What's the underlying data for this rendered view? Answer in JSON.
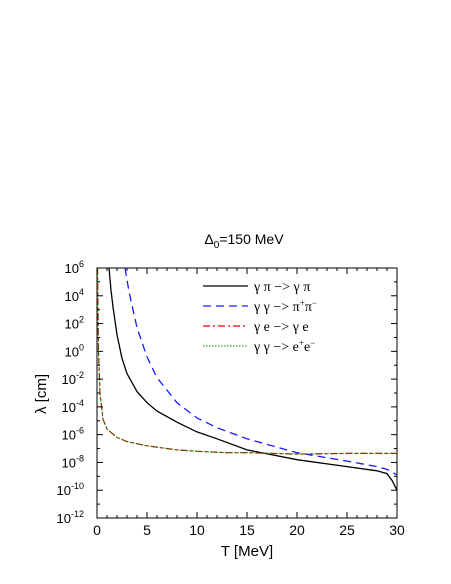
{
  "chart_data": {
    "type": "line",
    "title_prefix": "Δ",
    "title_sub": "0",
    "title_suffix": "=150 MeV",
    "xlabel": "T [MeV]",
    "ylabel": "λ [cm]",
    "xlim": [
      0,
      30
    ],
    "ylim_exp": [
      -12,
      6
    ],
    "yscale": "log",
    "x_ticks": [
      0,
      5,
      10,
      15,
      20,
      25,
      30
    ],
    "y_ticks_exp": [
      6,
      4,
      2,
      0,
      -2,
      -4,
      -6,
      -8,
      -10,
      -12
    ],
    "y_tick_base": "10",
    "grid": false,
    "legend_placement": "top-right",
    "series": [
      {
        "name": "γπ -> γπ",
        "legend_parts": [
          {
            "t": "γ π −> γ π"
          }
        ],
        "color": "#000000",
        "dash": "",
        "width": 1.3,
        "x": [
          1.2,
          1.4,
          1.6,
          1.8,
          2.0,
          2.5,
          3,
          4,
          5,
          6,
          8,
          10,
          12,
          15,
          20,
          25,
          28,
          29,
          29.5,
          30
        ],
        "log10_y": [
          6,
          4.4,
          3.2,
          2.2,
          1.2,
          -0.5,
          -1.6,
          -2.9,
          -3.7,
          -4.3,
          -5.1,
          -5.8,
          -6.3,
          -7.1,
          -7.8,
          -8.3,
          -8.6,
          -8.8,
          -9.3,
          -10.0
        ]
      },
      {
        "name": "γγ -> π+π-",
        "legend_parts": [
          {
            "t": "γ γ −> π"
          },
          {
            "t": "+",
            "sup": true
          },
          {
            "t": "π"
          },
          {
            "t": "−",
            "sup": true
          }
        ],
        "color": "#1a1aff",
        "dash": "8,5",
        "width": 1.3,
        "x": [
          2.8,
          3.2,
          3.6,
          4,
          5,
          6,
          8,
          10,
          12,
          15,
          20,
          25,
          28,
          29,
          30
        ],
        "log10_y": [
          6,
          4.3,
          3.0,
          1.7,
          -0.4,
          -1.9,
          -3.7,
          -4.8,
          -5.5,
          -6.3,
          -7.3,
          -7.9,
          -8.3,
          -8.5,
          -8.9
        ]
      },
      {
        "name": "γe -> γe",
        "legend_parts": [
          {
            "t": "γ e −> γ e"
          }
        ],
        "color": "#e00000",
        "dash": "7,3,2,3",
        "width": 1.2,
        "x": [
          0.05,
          0.15,
          0.3,
          0.6,
          1,
          2,
          3,
          5,
          8,
          10,
          13,
          15,
          20,
          25,
          28,
          30
        ],
        "log10_y": [
          6,
          0,
          -3,
          -4.9,
          -5.6,
          -6.2,
          -6.5,
          -6.8,
          -7.1,
          -7.2,
          -7.3,
          -7.3,
          -7.4,
          -7.35,
          -7.35,
          -7.35
        ]
      },
      {
        "name": "γγ -> e+e-",
        "legend_parts": [
          {
            "t": "γ γ −> e"
          },
          {
            "t": "+",
            "sup": true
          },
          {
            "t": "e"
          },
          {
            "t": "−",
            "sup": true
          }
        ],
        "color": "#008800",
        "dash": "1.5,1.5",
        "width": 1.1,
        "x": [
          0.05,
          0.15,
          0.3,
          0.6,
          1,
          2,
          3,
          5,
          8,
          10,
          13,
          15,
          20,
          25,
          28,
          30
        ],
        "log10_y": [
          6,
          0,
          -3,
          -4.9,
          -5.6,
          -6.2,
          -6.5,
          -6.8,
          -7.1,
          -7.2,
          -7.3,
          -7.3,
          -7.4,
          -7.35,
          -7.35,
          -7.35
        ]
      }
    ]
  }
}
